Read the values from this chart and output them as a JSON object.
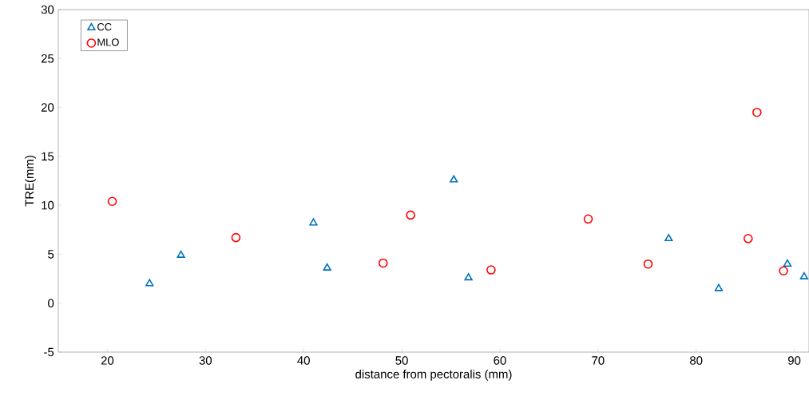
{
  "chart_data": {
    "type": "scatter",
    "xlabel": "distance from pectoralis (mm)",
    "ylabel": "TRE(mm)",
    "xlim": [
      15,
      91.5
    ],
    "ylim": [
      -5,
      30
    ],
    "xticks": [
      20,
      30,
      40,
      50,
      60,
      70,
      80,
      90
    ],
    "yticks": [
      -5,
      0,
      5,
      10,
      15,
      20,
      25,
      30
    ],
    "grid": false,
    "legend": "top left",
    "series": [
      {
        "name": "CC",
        "color": "#0072bd",
        "marker": "triangle",
        "x": [
          24.3,
          27.5,
          41.0,
          42.4,
          55.3,
          56.8,
          77.2,
          82.3,
          89.3,
          91.0
        ],
        "values": [
          2.0,
          4.9,
          8.2,
          3.6,
          12.6,
          2.6,
          6.6,
          1.5,
          4.0,
          2.7
        ]
      },
      {
        "name": "MLO",
        "color": "#ff0000",
        "marker": "circle",
        "x": [
          20.5,
          33.1,
          48.1,
          50.9,
          59.1,
          69.0,
          75.1,
          85.3,
          86.2,
          88.9
        ],
        "values": [
          10.4,
          6.7,
          4.1,
          9.0,
          3.4,
          8.6,
          4.0,
          6.6,
          19.5,
          3.3
        ]
      }
    ]
  }
}
